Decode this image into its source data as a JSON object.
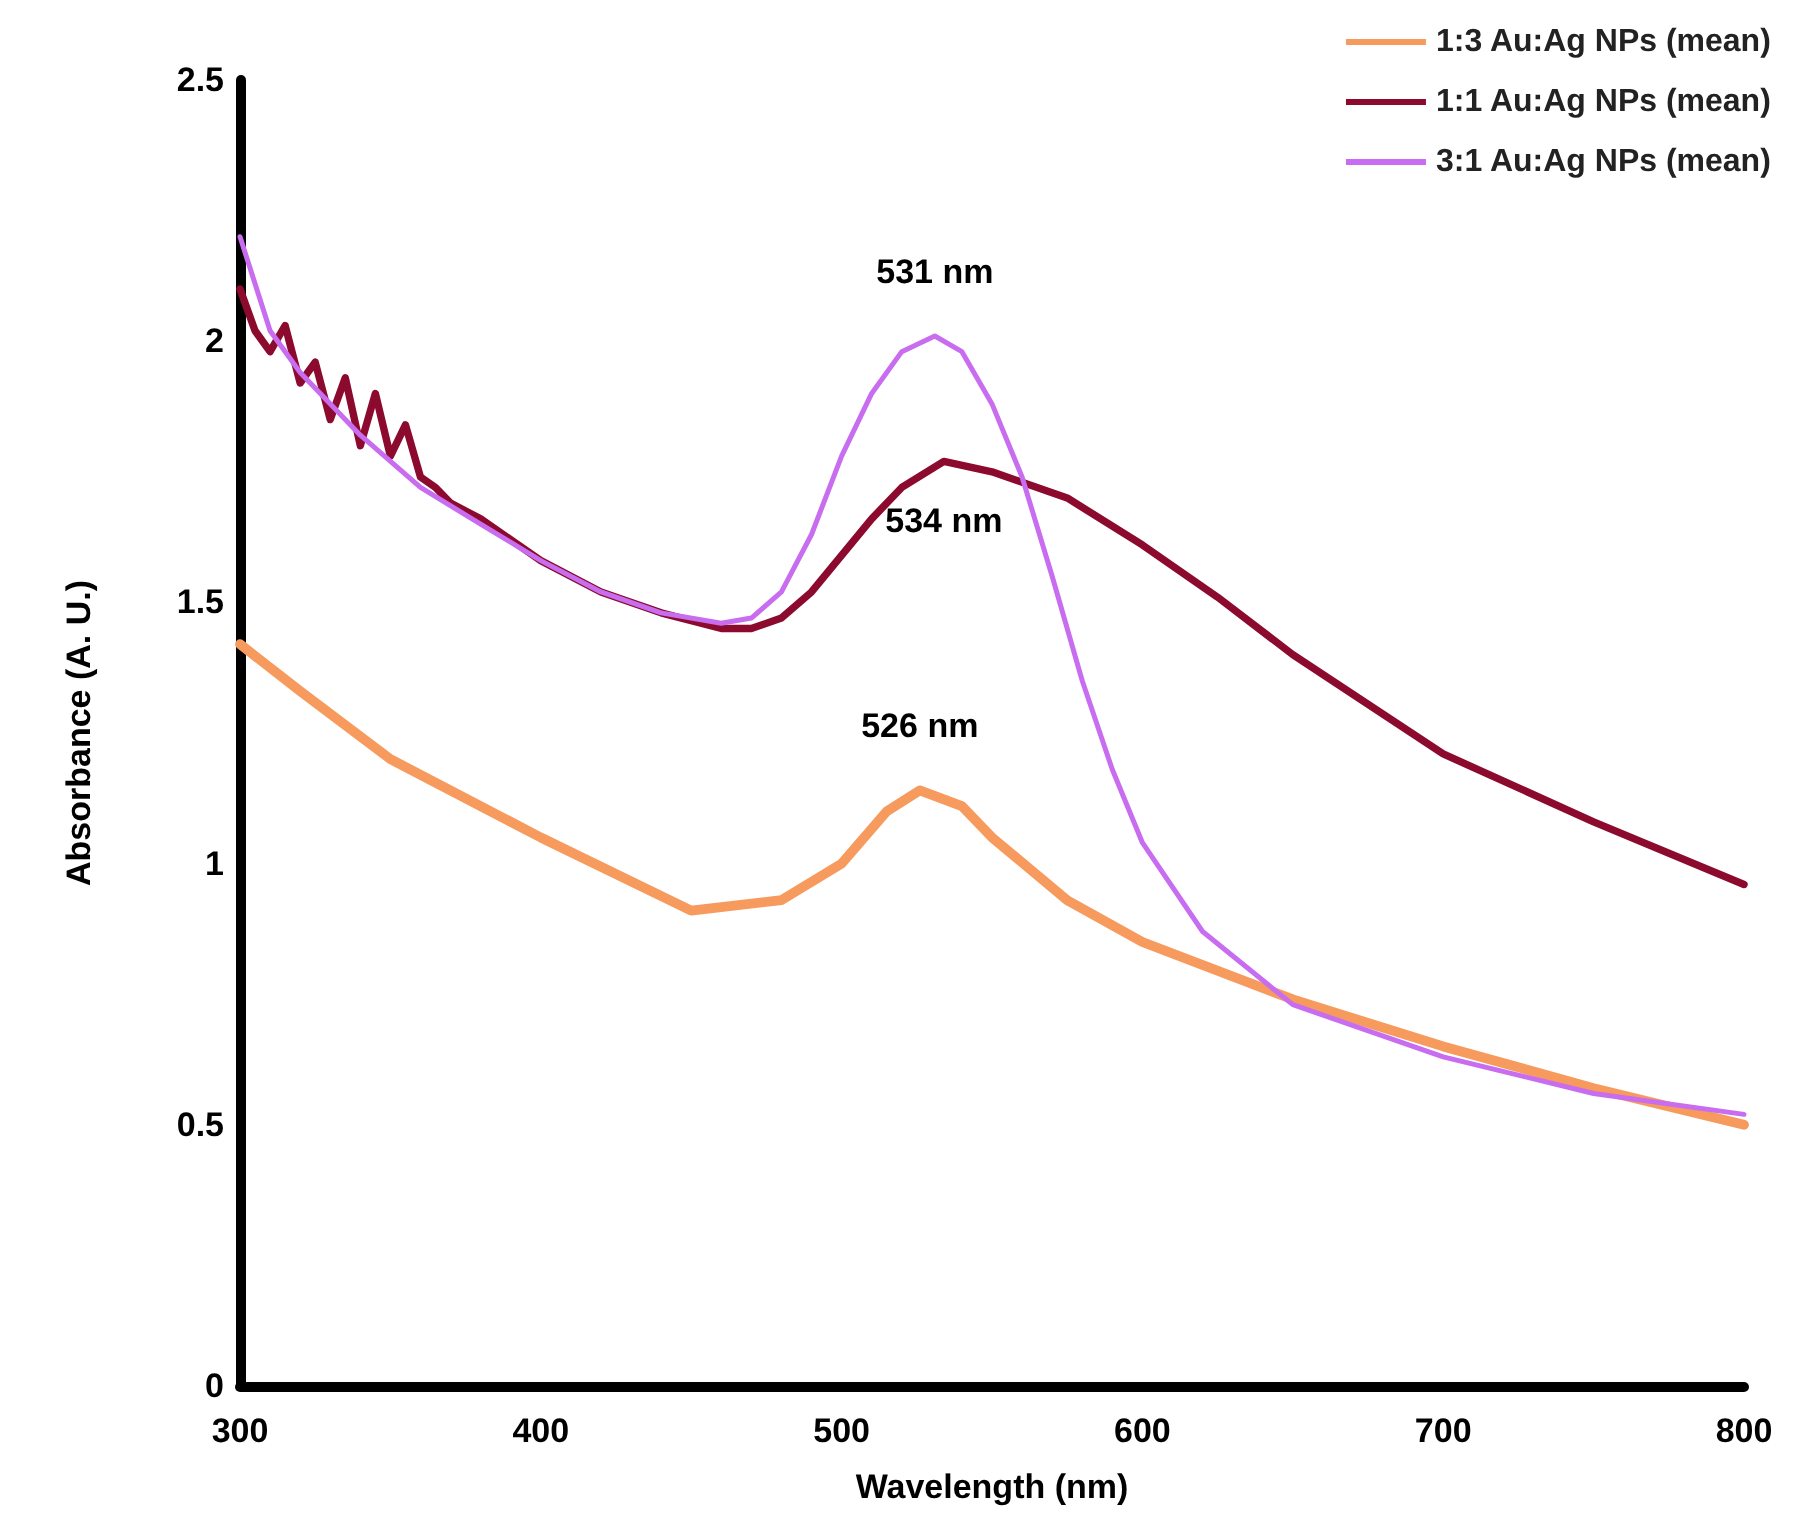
{
  "chart_data": {
    "type": "line",
    "xlabel": "Wavelength (nm)",
    "ylabel": "Absorbance (A. U.)",
    "xlim": [
      300,
      800
    ],
    "xticks": [
      300,
      400,
      500,
      600,
      700,
      800
    ],
    "ylim": [
      0,
      2.5
    ],
    "yticks": [
      0,
      0.5,
      1,
      1.5,
      2,
      2.5
    ],
    "grid": false,
    "legend": "top right",
    "line_style": "solid",
    "series": [
      {
        "name": "1:3 Au:Ag NPs (mean)",
        "color": "#f79a5e",
        "x": [
          300,
          320,
          350,
          400,
          450,
          480,
          500,
          515,
          526,
          540,
          550,
          575,
          600,
          650,
          700,
          750,
          800
        ],
        "values": [
          1.42,
          1.33,
          1.2,
          1.05,
          0.91,
          0.93,
          1.0,
          1.1,
          1.14,
          1.11,
          1.05,
          0.93,
          0.85,
          0.74,
          0.65,
          0.57,
          0.5
        ]
      },
      {
        "name": "1:1 Au:Ag NPs (mean)",
        "color": "#8b0a2e",
        "x": [
          300,
          305,
          310,
          315,
          320,
          325,
          330,
          335,
          340,
          345,
          350,
          355,
          360,
          365,
          370,
          380,
          400,
          420,
          440,
          460,
          470,
          480,
          490,
          500,
          510,
          520,
          534,
          550,
          575,
          600,
          625,
          650,
          700,
          750,
          800
        ],
        "values": [
          2.1,
          2.02,
          1.98,
          2.03,
          1.92,
          1.96,
          1.85,
          1.93,
          1.8,
          1.9,
          1.78,
          1.84,
          1.74,
          1.72,
          1.69,
          1.66,
          1.58,
          1.52,
          1.48,
          1.45,
          1.45,
          1.47,
          1.52,
          1.59,
          1.66,
          1.72,
          1.77,
          1.75,
          1.7,
          1.61,
          1.51,
          1.4,
          1.21,
          1.08,
          0.96
        ]
      },
      {
        "name": "3:1 Au:Ag NPs (mean)",
        "color": "#c86cf0",
        "x": [
          300,
          310,
          320,
          340,
          360,
          380,
          400,
          420,
          440,
          460,
          470,
          480,
          490,
          500,
          510,
          520,
          531,
          540,
          550,
          560,
          570,
          580,
          590,
          600,
          620,
          650,
          700,
          750,
          800
        ],
        "values": [
          2.2,
          2.02,
          1.94,
          1.82,
          1.72,
          1.65,
          1.58,
          1.52,
          1.48,
          1.46,
          1.47,
          1.52,
          1.63,
          1.78,
          1.9,
          1.98,
          2.01,
          1.98,
          1.88,
          1.74,
          1.55,
          1.35,
          1.18,
          1.04,
          0.87,
          0.73,
          0.63,
          0.56,
          0.52
        ]
      }
    ],
    "annotations": [
      {
        "text": "531 nm",
        "x": 531,
        "y": 2.01
      },
      {
        "text": "534 nm",
        "x": 534,
        "y": 1.77
      },
      {
        "text": "526 nm",
        "x": 526,
        "y": 1.14
      }
    ]
  }
}
